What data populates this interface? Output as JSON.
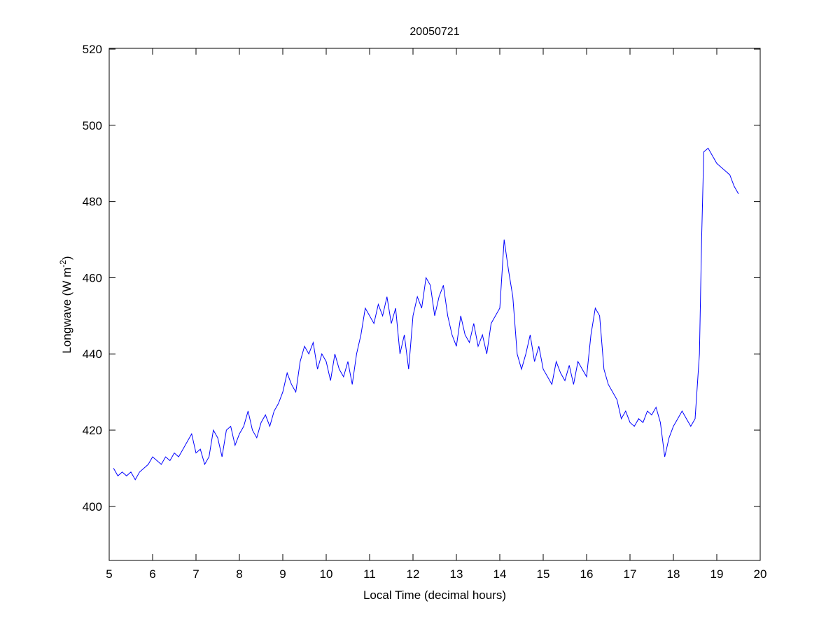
{
  "chart_data": {
    "type": "line",
    "title": "20050721",
    "xlabel": "Local Time (decimal hours)",
    "ylabel": "Longwave (W m",
    "ylabel_sup": "-2",
    "ylabel_close": ")",
    "xlim": [
      5,
      20
    ],
    "ylim": [
      385.8,
      520.2
    ],
    "xticks": [
      5,
      6,
      7,
      8,
      9,
      10,
      11,
      12,
      13,
      14,
      15,
      16,
      17,
      18,
      19,
      20
    ],
    "yticks": [
      400,
      420,
      440,
      460,
      480,
      500,
      520
    ],
    "grid": false,
    "line_color": "#0000ff",
    "series": [
      {
        "name": "Longwave",
        "x": [
          5.1,
          5.2,
          5.3,
          5.4,
          5.5,
          5.6,
          5.7,
          5.8,
          5.9,
          6.0,
          6.1,
          6.2,
          6.3,
          6.4,
          6.5,
          6.6,
          6.7,
          6.8,
          6.9,
          7.0,
          7.1,
          7.2,
          7.3,
          7.4,
          7.5,
          7.6,
          7.7,
          7.8,
          7.9,
          8.0,
          8.1,
          8.2,
          8.3,
          8.4,
          8.5,
          8.6,
          8.7,
          8.8,
          8.9,
          9.0,
          9.1,
          9.2,
          9.3,
          9.4,
          9.5,
          9.6,
          9.7,
          9.8,
          9.9,
          10.0,
          10.1,
          10.2,
          10.3,
          10.4,
          10.5,
          10.6,
          10.7,
          10.8,
          10.9,
          11.0,
          11.1,
          11.2,
          11.3,
          11.4,
          11.5,
          11.6,
          11.7,
          11.8,
          11.9,
          12.0,
          12.1,
          12.2,
          12.3,
          12.4,
          12.5,
          12.6,
          12.7,
          12.8,
          12.9,
          13.0,
          13.1,
          13.2,
          13.3,
          13.4,
          13.5,
          13.6,
          13.7,
          13.8,
          13.9,
          14.0,
          14.1,
          14.2,
          14.3,
          14.4,
          14.5,
          14.6,
          14.7,
          14.8,
          14.9,
          15.0,
          15.1,
          15.2,
          15.3,
          15.4,
          15.5,
          15.6,
          15.7,
          15.8,
          15.9,
          16.0,
          16.1,
          16.2,
          16.3,
          16.4,
          16.5,
          16.6,
          16.7,
          16.8,
          16.9,
          17.0,
          17.1,
          17.2,
          17.3,
          17.4,
          17.5,
          17.6,
          17.7,
          17.8,
          17.9,
          18.0,
          18.1,
          18.2,
          18.3,
          18.4,
          18.5,
          18.6,
          18.65,
          18.7,
          18.8,
          18.9,
          19.0,
          19.1,
          19.2,
          19.3,
          19.4,
          19.5
        ],
        "y": [
          410,
          408,
          409,
          408,
          409,
          407,
          409,
          410,
          411,
          413,
          412,
          411,
          413,
          412,
          414,
          413,
          415,
          417,
          419,
          414,
          415,
          411,
          413,
          420,
          418,
          413,
          420,
          421,
          416,
          419,
          421,
          425,
          420,
          418,
          422,
          424,
          421,
          425,
          427,
          430,
          435,
          432,
          430,
          438,
          442,
          440,
          443,
          436,
          440,
          438,
          433,
          440,
          436,
          434,
          438,
          432,
          440,
          445,
          452,
          450,
          448,
          453,
          450,
          455,
          448,
          452,
          440,
          445,
          436,
          450,
          455,
          452,
          460,
          458,
          450,
          455,
          458,
          450,
          445,
          442,
          450,
          445,
          443,
          448,
          442,
          445,
          440,
          448,
          450,
          452,
          470,
          462,
          455,
          440,
          436,
          440,
          445,
          438,
          442,
          436,
          434,
          432,
          438,
          435,
          433,
          437,
          432,
          438,
          436,
          434,
          445,
          452,
          450,
          436,
          432,
          430,
          428,
          423,
          425,
          422,
          421,
          423,
          422,
          425,
          424,
          426,
          422,
          413,
          418,
          421,
          423,
          425,
          423,
          421,
          423,
          440,
          470,
          493,
          494,
          492,
          490,
          489,
          488,
          487,
          484,
          482
        ]
      }
    ]
  }
}
